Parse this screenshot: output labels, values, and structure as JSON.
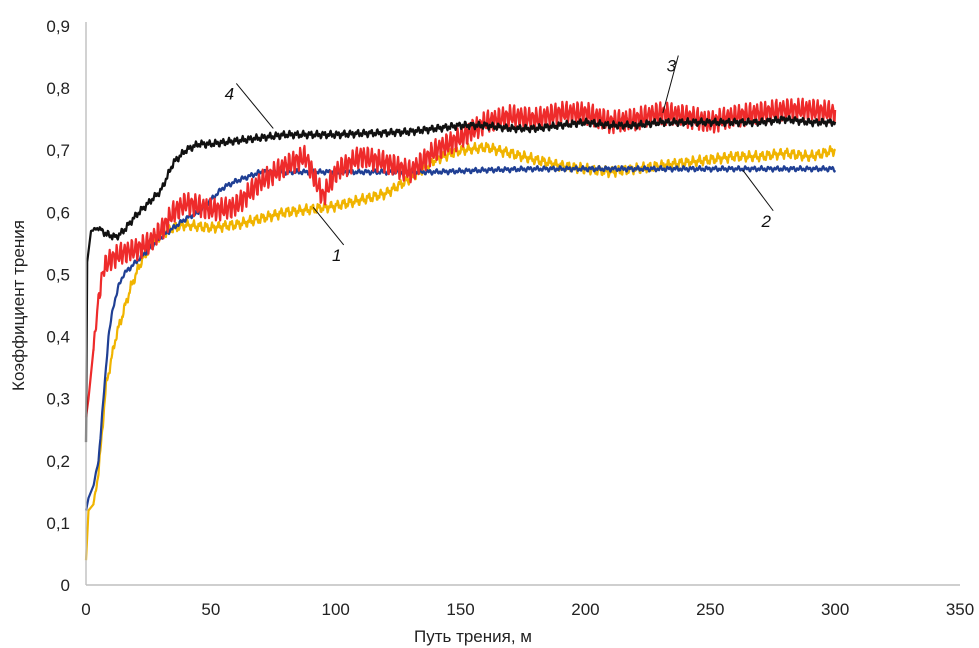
{
  "chart_data": {
    "type": "line",
    "title": "",
    "xlabel": "Путь трения, м",
    "ylabel": "Коэффициент трения",
    "xlim": [
      0,
      350
    ],
    "ylim": [
      0,
      0.9
    ],
    "x_ticks": [
      0,
      50,
      100,
      150,
      200,
      250,
      300,
      350
    ],
    "x_tick_labels": [
      "0",
      "50",
      "100",
      "150",
      "200",
      "250",
      "300",
      "350"
    ],
    "y_ticks": [
      0,
      0.1,
      0.2,
      0.3,
      0.4,
      0.5,
      0.6,
      0.7,
      0.8,
      0.9
    ],
    "y_tick_labels": [
      "0",
      "0,1",
      "0,2",
      "0,3",
      "0,4",
      "0,5",
      "0,6",
      "0,7",
      "0,8",
      "0,9"
    ],
    "grid": false,
    "legend": "none",
    "series": [
      {
        "label": "1",
        "color": "#f0b400",
        "label_at": [
          102,
          0.525
        ],
        "leader_to": [
          91,
          0.608
        ],
        "noise": [
          0.005,
          2.5,
          0.004,
          0.9
        ],
        "points": [
          [
            0,
            0.04
          ],
          [
            1,
            0.12
          ],
          [
            3,
            0.13
          ],
          [
            5,
            0.18
          ],
          [
            8,
            0.32
          ],
          [
            10,
            0.36
          ],
          [
            12,
            0.4
          ],
          [
            15,
            0.44
          ],
          [
            18,
            0.48
          ],
          [
            22,
            0.52
          ],
          [
            25,
            0.54
          ],
          [
            30,
            0.565
          ],
          [
            35,
            0.575
          ],
          [
            40,
            0.58
          ],
          [
            50,
            0.575
          ],
          [
            60,
            0.58
          ],
          [
            70,
            0.59
          ],
          [
            80,
            0.6
          ],
          [
            90,
            0.605
          ],
          [
            100,
            0.61
          ],
          [
            110,
            0.62
          ],
          [
            120,
            0.63
          ],
          [
            130,
            0.655
          ],
          [
            140,
            0.685
          ],
          [
            150,
            0.7
          ],
          [
            160,
            0.705
          ],
          [
            170,
            0.695
          ],
          [
            180,
            0.685
          ],
          [
            190,
            0.675
          ],
          [
            200,
            0.67
          ],
          [
            210,
            0.665
          ],
          [
            220,
            0.67
          ],
          [
            230,
            0.675
          ],
          [
            240,
            0.68
          ],
          [
            250,
            0.685
          ],
          [
            260,
            0.69
          ],
          [
            270,
            0.69
          ],
          [
            280,
            0.695
          ],
          [
            290,
            0.69
          ],
          [
            300,
            0.7
          ]
        ]
      },
      {
        "label": "2",
        "color": "#1f3f94",
        "label_at": [
          274,
          0.58
        ],
        "leader_to": [
          263,
          0.668
        ],
        "noise": [
          0.002,
          3.1,
          0.0025,
          1.3
        ],
        "points": [
          [
            0,
            0.12
          ],
          [
            1,
            0.14
          ],
          [
            3,
            0.16
          ],
          [
            5,
            0.2
          ],
          [
            7,
            0.3
          ],
          [
            9,
            0.4
          ],
          [
            11,
            0.45
          ],
          [
            13,
            0.48
          ],
          [
            15,
            0.5
          ],
          [
            20,
            0.52
          ],
          [
            25,
            0.54
          ],
          [
            30,
            0.56
          ],
          [
            35,
            0.575
          ],
          [
            40,
            0.59
          ],
          [
            45,
            0.6
          ],
          [
            50,
            0.62
          ],
          [
            55,
            0.64
          ],
          [
            60,
            0.65
          ],
          [
            70,
            0.665
          ],
          [
            80,
            0.665
          ],
          [
            100,
            0.665
          ],
          [
            120,
            0.665
          ],
          [
            140,
            0.665
          ],
          [
            160,
            0.668
          ],
          [
            180,
            0.67
          ],
          [
            200,
            0.67
          ],
          [
            220,
            0.67
          ],
          [
            240,
            0.67
          ],
          [
            260,
            0.67
          ],
          [
            280,
            0.67
          ],
          [
            300,
            0.67
          ]
        ]
      },
      {
        "label": "3",
        "color": "#ee2b2b",
        "label_at": [
          236,
          0.83
        ],
        "leader_to": [
          231,
          0.76
        ],
        "noise": [
          0.014,
          1.5,
          0.006,
          0.35
        ],
        "points": [
          [
            0,
            0.27
          ],
          [
            1,
            0.3
          ],
          [
            3,
            0.38
          ],
          [
            5,
            0.46
          ],
          [
            7,
            0.51
          ],
          [
            10,
            0.525
          ],
          [
            15,
            0.535
          ],
          [
            20,
            0.54
          ],
          [
            25,
            0.55
          ],
          [
            30,
            0.57
          ],
          [
            35,
            0.6
          ],
          [
            40,
            0.615
          ],
          [
            45,
            0.61
          ],
          [
            50,
            0.605
          ],
          [
            55,
            0.605
          ],
          [
            60,
            0.61
          ],
          [
            70,
            0.65
          ],
          [
            80,
            0.675
          ],
          [
            88,
            0.69
          ],
          [
            92,
            0.65
          ],
          [
            95,
            0.625
          ],
          [
            100,
            0.665
          ],
          [
            110,
            0.69
          ],
          [
            120,
            0.68
          ],
          [
            130,
            0.665
          ],
          [
            140,
            0.7
          ],
          [
            150,
            0.72
          ],
          [
            160,
            0.745
          ],
          [
            170,
            0.755
          ],
          [
            180,
            0.75
          ],
          [
            190,
            0.76
          ],
          [
            200,
            0.76
          ],
          [
            210,
            0.745
          ],
          [
            220,
            0.75
          ],
          [
            230,
            0.76
          ],
          [
            240,
            0.755
          ],
          [
            250,
            0.745
          ],
          [
            260,
            0.755
          ],
          [
            270,
            0.76
          ],
          [
            280,
            0.765
          ],
          [
            290,
            0.765
          ],
          [
            300,
            0.76
          ]
        ]
      },
      {
        "label": "4",
        "color": "#111111",
        "label_at": [
          59,
          0.785
        ],
        "leader_to": [
          75,
          0.735
        ],
        "noise": [
          0.003,
          2.7,
          0.0035,
          1.1
        ],
        "points": [
          [
            0,
            0.23
          ],
          [
            0.5,
            0.52
          ],
          [
            2,
            0.57
          ],
          [
            5,
            0.575
          ],
          [
            8,
            0.565
          ],
          [
            12,
            0.56
          ],
          [
            15,
            0.57
          ],
          [
            20,
            0.595
          ],
          [
            25,
            0.615
          ],
          [
            30,
            0.635
          ],
          [
            35,
            0.68
          ],
          [
            40,
            0.7
          ],
          [
            45,
            0.71
          ],
          [
            50,
            0.71
          ],
          [
            60,
            0.715
          ],
          [
            70,
            0.72
          ],
          [
            80,
            0.725
          ],
          [
            90,
            0.725
          ],
          [
            100,
            0.725
          ],
          [
            110,
            0.727
          ],
          [
            120,
            0.728
          ],
          [
            130,
            0.73
          ],
          [
            140,
            0.735
          ],
          [
            150,
            0.74
          ],
          [
            160,
            0.74
          ],
          [
            170,
            0.735
          ],
          [
            180,
            0.735
          ],
          [
            190,
            0.74
          ],
          [
            200,
            0.745
          ],
          [
            210,
            0.74
          ],
          [
            220,
            0.74
          ],
          [
            230,
            0.745
          ],
          [
            240,
            0.745
          ],
          [
            250,
            0.745
          ],
          [
            260,
            0.745
          ],
          [
            270,
            0.745
          ],
          [
            280,
            0.75
          ],
          [
            290,
            0.745
          ],
          [
            300,
            0.745
          ]
        ]
      }
    ]
  }
}
